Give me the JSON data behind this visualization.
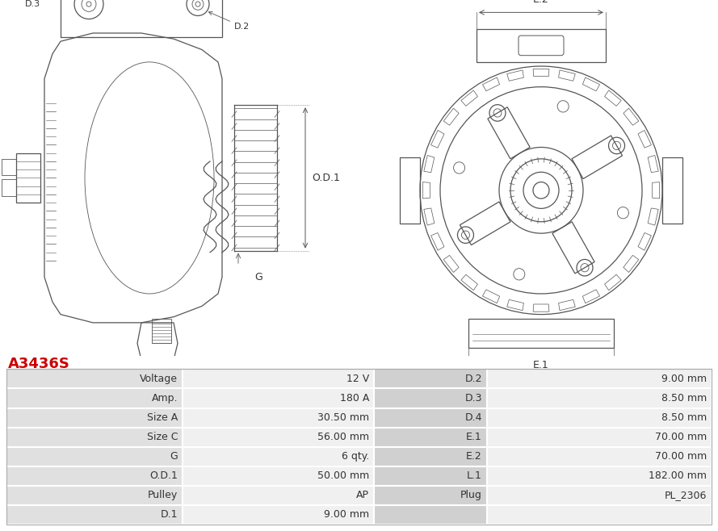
{
  "title": "A3436S",
  "title_color": "#cc0000",
  "table_data": [
    [
      "Voltage",
      "12 V",
      "D.2",
      "9.00 mm"
    ],
    [
      "Amp.",
      "180 A",
      "D.3",
      "8.50 mm"
    ],
    [
      "Size A",
      "30.50 mm",
      "D.4",
      "8.50 mm"
    ],
    [
      "Size C",
      "56.00 mm",
      "E.1",
      "70.00 mm"
    ],
    [
      "G",
      "6 qty.",
      "E.2",
      "70.00 mm"
    ],
    [
      "O.D.1",
      "50.00 mm",
      "L.1",
      "182.00 mm"
    ],
    [
      "Pulley",
      "AP",
      "Plug",
      "PL_2306"
    ],
    [
      "D.1",
      "9.00 mm",
      "",
      ""
    ]
  ],
  "bg_color_label": "#e0e0e0",
  "bg_color_value": "#f0f0f0",
  "bg_color_mid_label": "#d0d0d0",
  "font_size_table": 9,
  "font_size_title": 13,
  "lc": "#555555",
  "dim_color": "#555555"
}
